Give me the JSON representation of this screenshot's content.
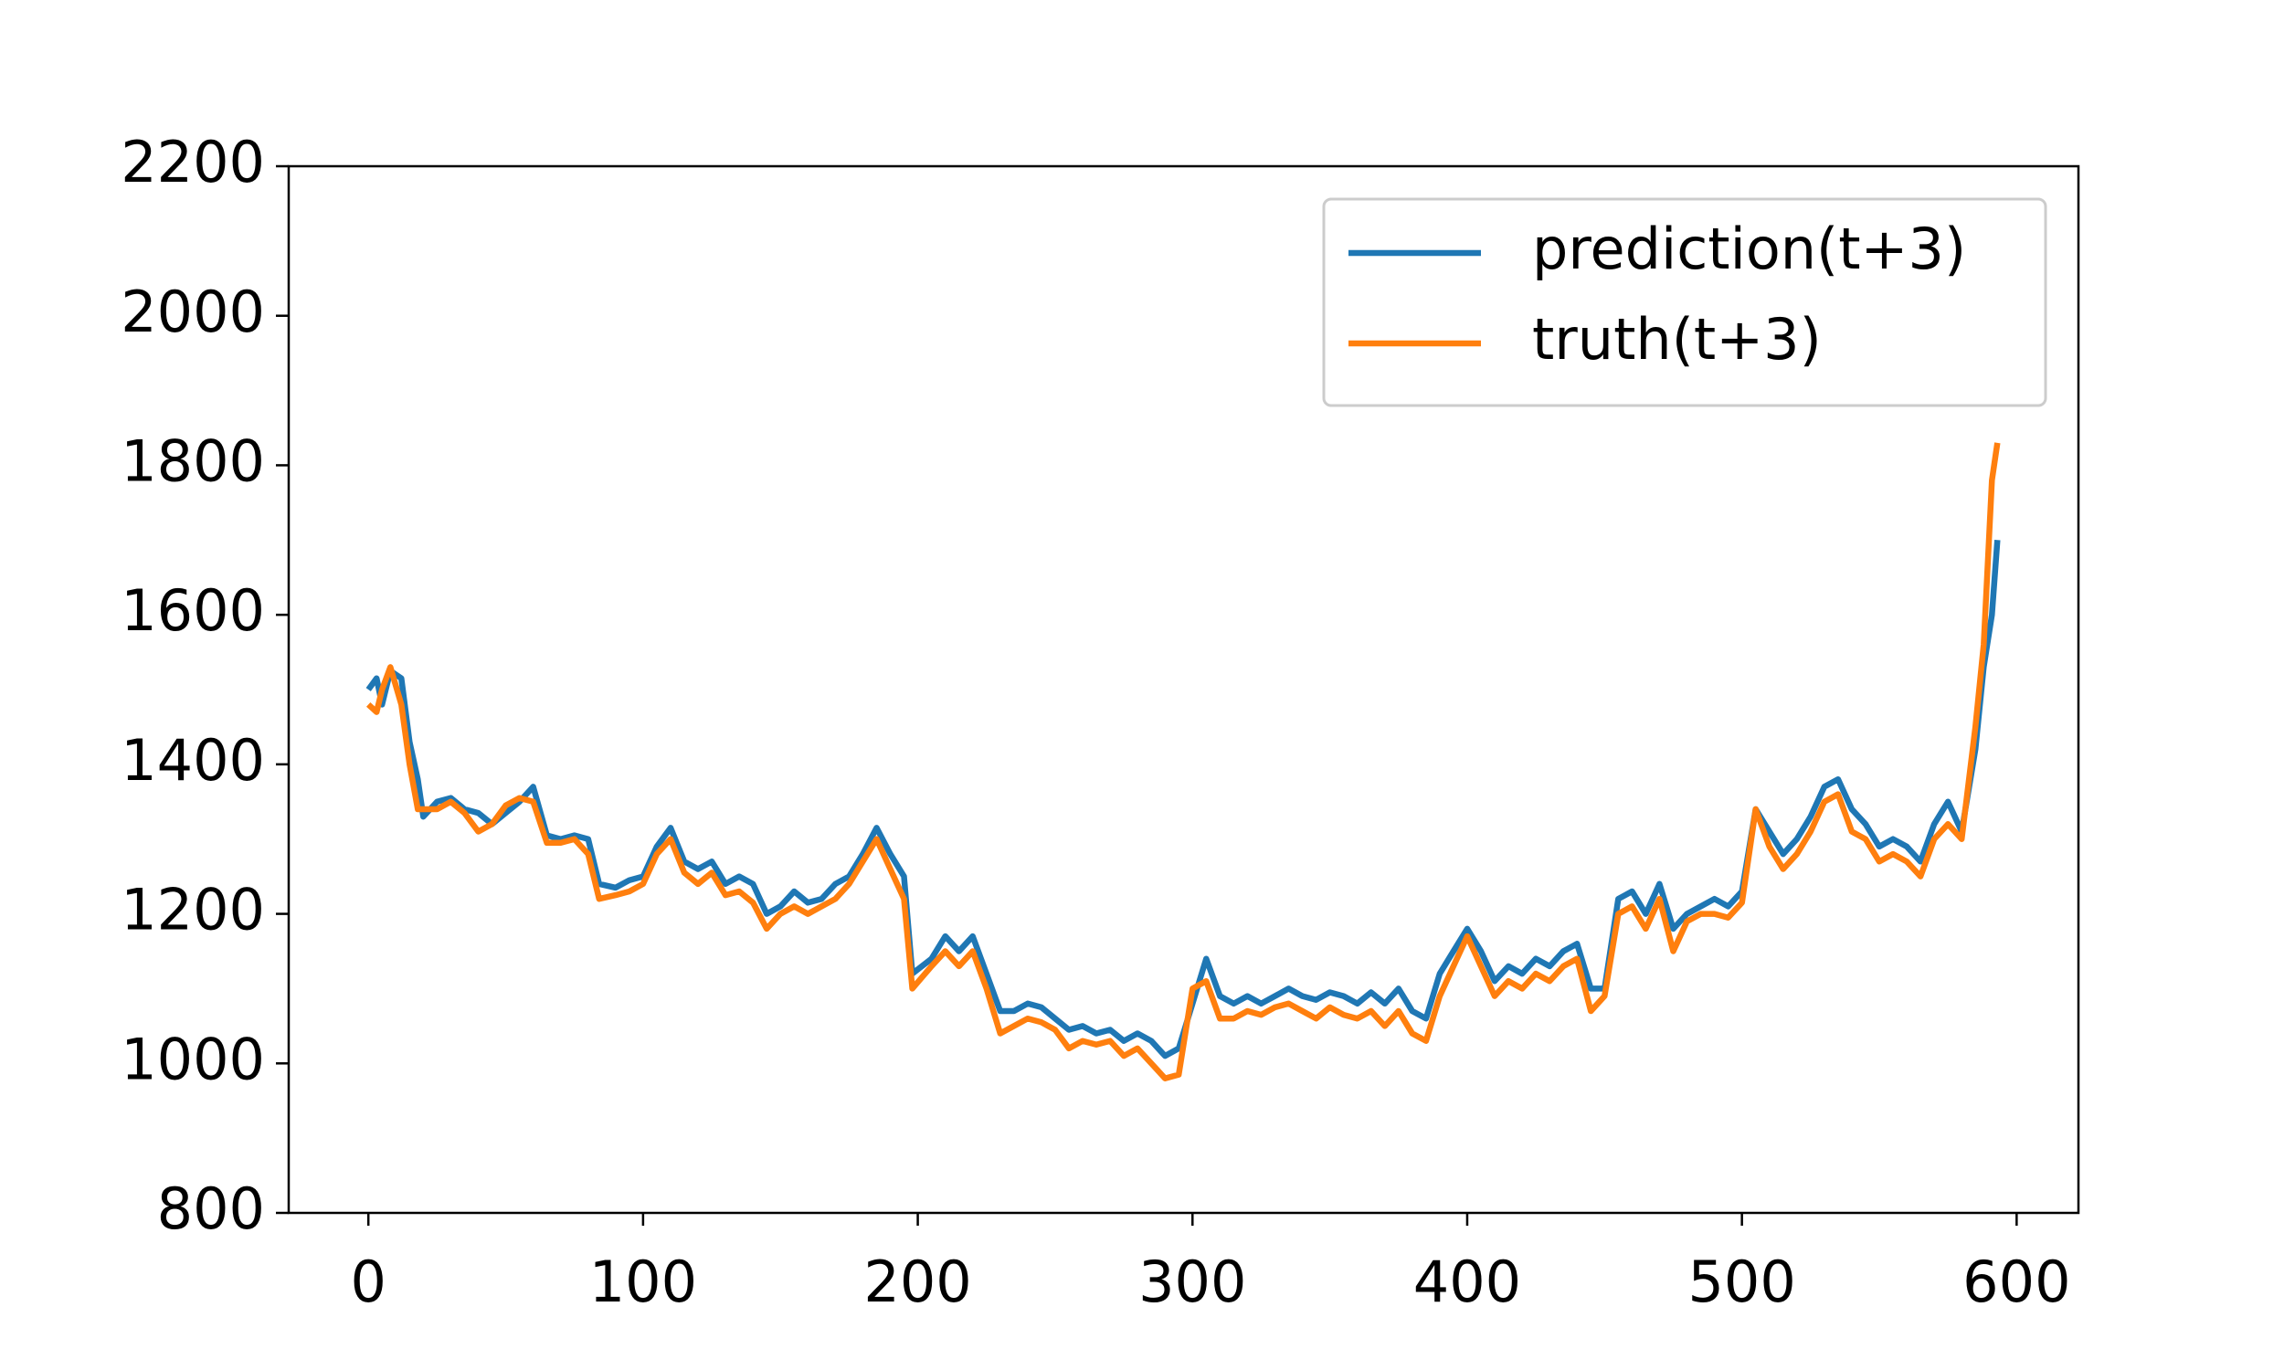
{
  "chart_data": {
    "type": "line",
    "x": [
      0,
      3,
      5,
      8,
      12,
      15,
      18,
      20,
      25,
      30,
      35,
      40,
      45,
      50,
      55,
      60,
      65,
      70,
      75,
      80,
      84,
      90,
      95,
      100,
      105,
      110,
      115,
      120,
      125,
      130,
      135,
      140,
      145,
      150,
      155,
      160,
      165,
      170,
      175,
      180,
      185,
      190,
      195,
      198,
      205,
      210,
      215,
      220,
      225,
      230,
      235,
      240,
      245,
      250,
      255,
      260,
      265,
      270,
      275,
      280,
      285,
      290,
      295,
      300,
      305,
      310,
      315,
      320,
      325,
      330,
      335,
      340,
      345,
      350,
      355,
      360,
      365,
      370,
      375,
      380,
      385,
      390,
      395,
      400,
      405,
      410,
      415,
      420,
      425,
      430,
      435,
      440,
      445,
      450,
      455,
      460,
      465,
      470,
      475,
      480,
      485,
      490,
      495,
      500,
      505,
      510,
      515,
      520,
      525,
      530,
      535,
      540,
      545,
      550,
      555,
      560,
      565,
      570,
      575,
      580,
      585,
      588,
      591,
      593
    ],
    "series": [
      {
        "name": "prediction(t+3)",
        "color": "#1f77b4",
        "values": [
          1500,
          1515,
          1480,
          1525,
          1515,
          1430,
          1380,
          1330,
          1350,
          1355,
          1340,
          1335,
          1320,
          1335,
          1350,
          1370,
          1305,
          1300,
          1305,
          1300,
          1240,
          1235,
          1245,
          1250,
          1290,
          1315,
          1270,
          1260,
          1270,
          1240,
          1250,
          1240,
          1200,
          1210,
          1230,
          1215,
          1220,
          1240,
          1250,
          1280,
          1315,
          1280,
          1250,
          1120,
          1140,
          1170,
          1150,
          1170,
          1120,
          1070,
          1070,
          1080,
          1075,
          1060,
          1045,
          1050,
          1040,
          1045,
          1030,
          1040,
          1030,
          1010,
          1020,
          1080,
          1140,
          1090,
          1080,
          1090,
          1080,
          1090,
          1100,
          1090,
          1085,
          1095,
          1090,
          1080,
          1095,
          1080,
          1100,
          1070,
          1060,
          1120,
          1150,
          1180,
          1150,
          1110,
          1130,
          1120,
          1140,
          1130,
          1150,
          1160,
          1100,
          1100,
          1220,
          1230,
          1200,
          1240,
          1180,
          1200,
          1210,
          1220,
          1210,
          1230,
          1340,
          1310,
          1280,
          1300,
          1330,
          1370,
          1380,
          1340,
          1320,
          1290,
          1300,
          1290,
          1270,
          1320,
          1350,
          1310,
          1420,
          1530,
          1600,
          1700
        ]
      },
      {
        "name": "truth(t+3)",
        "color": "#ff7f0e",
        "values": [
          1480,
          1470,
          1500,
          1530,
          1480,
          1400,
          1340,
          1340,
          1340,
          1350,
          1335,
          1310,
          1320,
          1345,
          1355,
          1350,
          1295,
          1295,
          1300,
          1280,
          1220,
          1225,
          1230,
          1240,
          1280,
          1300,
          1255,
          1240,
          1255,
          1225,
          1230,
          1215,
          1180,
          1200,
          1210,
          1200,
          1210,
          1220,
          1240,
          1270,
          1300,
          1260,
          1220,
          1100,
          1130,
          1150,
          1130,
          1150,
          1100,
          1040,
          1050,
          1060,
          1055,
          1045,
          1020,
          1030,
          1025,
          1030,
          1010,
          1020,
          1000,
          980,
          985,
          1100,
          1110,
          1060,
          1060,
          1070,
          1065,
          1075,
          1080,
          1070,
          1060,
          1075,
          1065,
          1060,
          1070,
          1050,
          1070,
          1040,
          1030,
          1090,
          1130,
          1170,
          1130,
          1090,
          1110,
          1100,
          1120,
          1110,
          1130,
          1140,
          1070,
          1090,
          1200,
          1210,
          1180,
          1220,
          1150,
          1190,
          1200,
          1200,
          1195,
          1215,
          1340,
          1290,
          1260,
          1280,
          1310,
          1350,
          1360,
          1310,
          1300,
          1270,
          1280,
          1270,
          1250,
          1300,
          1320,
          1300,
          1450,
          1560,
          1780,
          1830
        ]
      }
    ],
    "xlim": [
      -29,
      622.5
    ],
    "ylim": [
      800,
      2200
    ],
    "xticks": [
      0,
      100,
      200,
      300,
      400,
      500,
      600
    ],
    "yticks": [
      800,
      1000,
      1200,
      1400,
      1600,
      1800,
      2000,
      2200
    ],
    "legend": "upper right"
  }
}
